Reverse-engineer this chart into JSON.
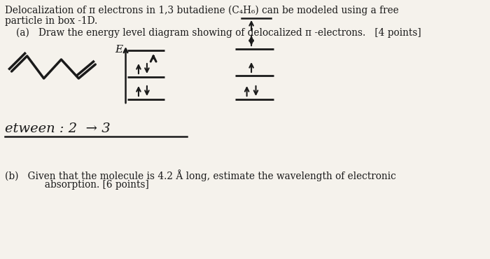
{
  "background_color": "#f0ede6",
  "page_color": "#f5f2ec",
  "fig_width": 7.0,
  "fig_height": 3.7,
  "dpi": 100,
  "text_color": "#1a1a1a",
  "line1": "Delocalization of π electrons in 1,3 butadiene (C₄H₆) can be modeled using a free",
  "line2": "particle in box -1D.",
  "line3": "(a)   Draw the energy level diagram showing of delocalized π -electrons.   [4 points]",
  "etween_line": "etween : 2  → 3",
  "line_b1": "(b)   Given that the molecule is 4.2 Å long, estimate the wavelength of electronic",
  "line_b2": "             absorption. [6 points]"
}
